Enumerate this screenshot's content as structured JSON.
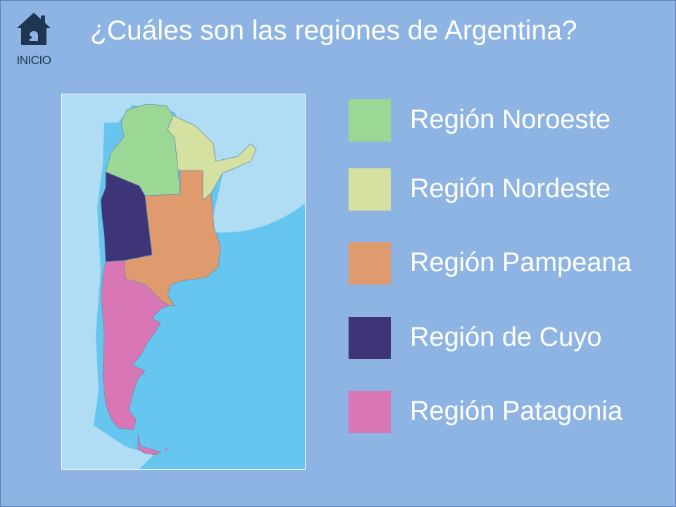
{
  "header": {
    "home_label": "INICIO",
    "title": "¿Cuáles son las regiones de Argentina?"
  },
  "legend": [
    {
      "label": "Región Noroeste",
      "color": "#9bd896"
    },
    {
      "label": "Región Nordeste",
      "color": "#d4e1a0"
    },
    {
      "label": "Región Pampeana",
      "color": "#df9a6d"
    },
    {
      "label": "Región de Cuyo",
      "color": "#3d3578"
    },
    {
      "label": "Región Patagonia",
      "color": "#d977b6"
    }
  ],
  "colors": {
    "background": "#8eb4e3",
    "ocean": "#66c6f0",
    "neighbors": "#b0dcf4",
    "home_icon": "#1f3550"
  },
  "icons": {
    "home": "house-icon"
  }
}
